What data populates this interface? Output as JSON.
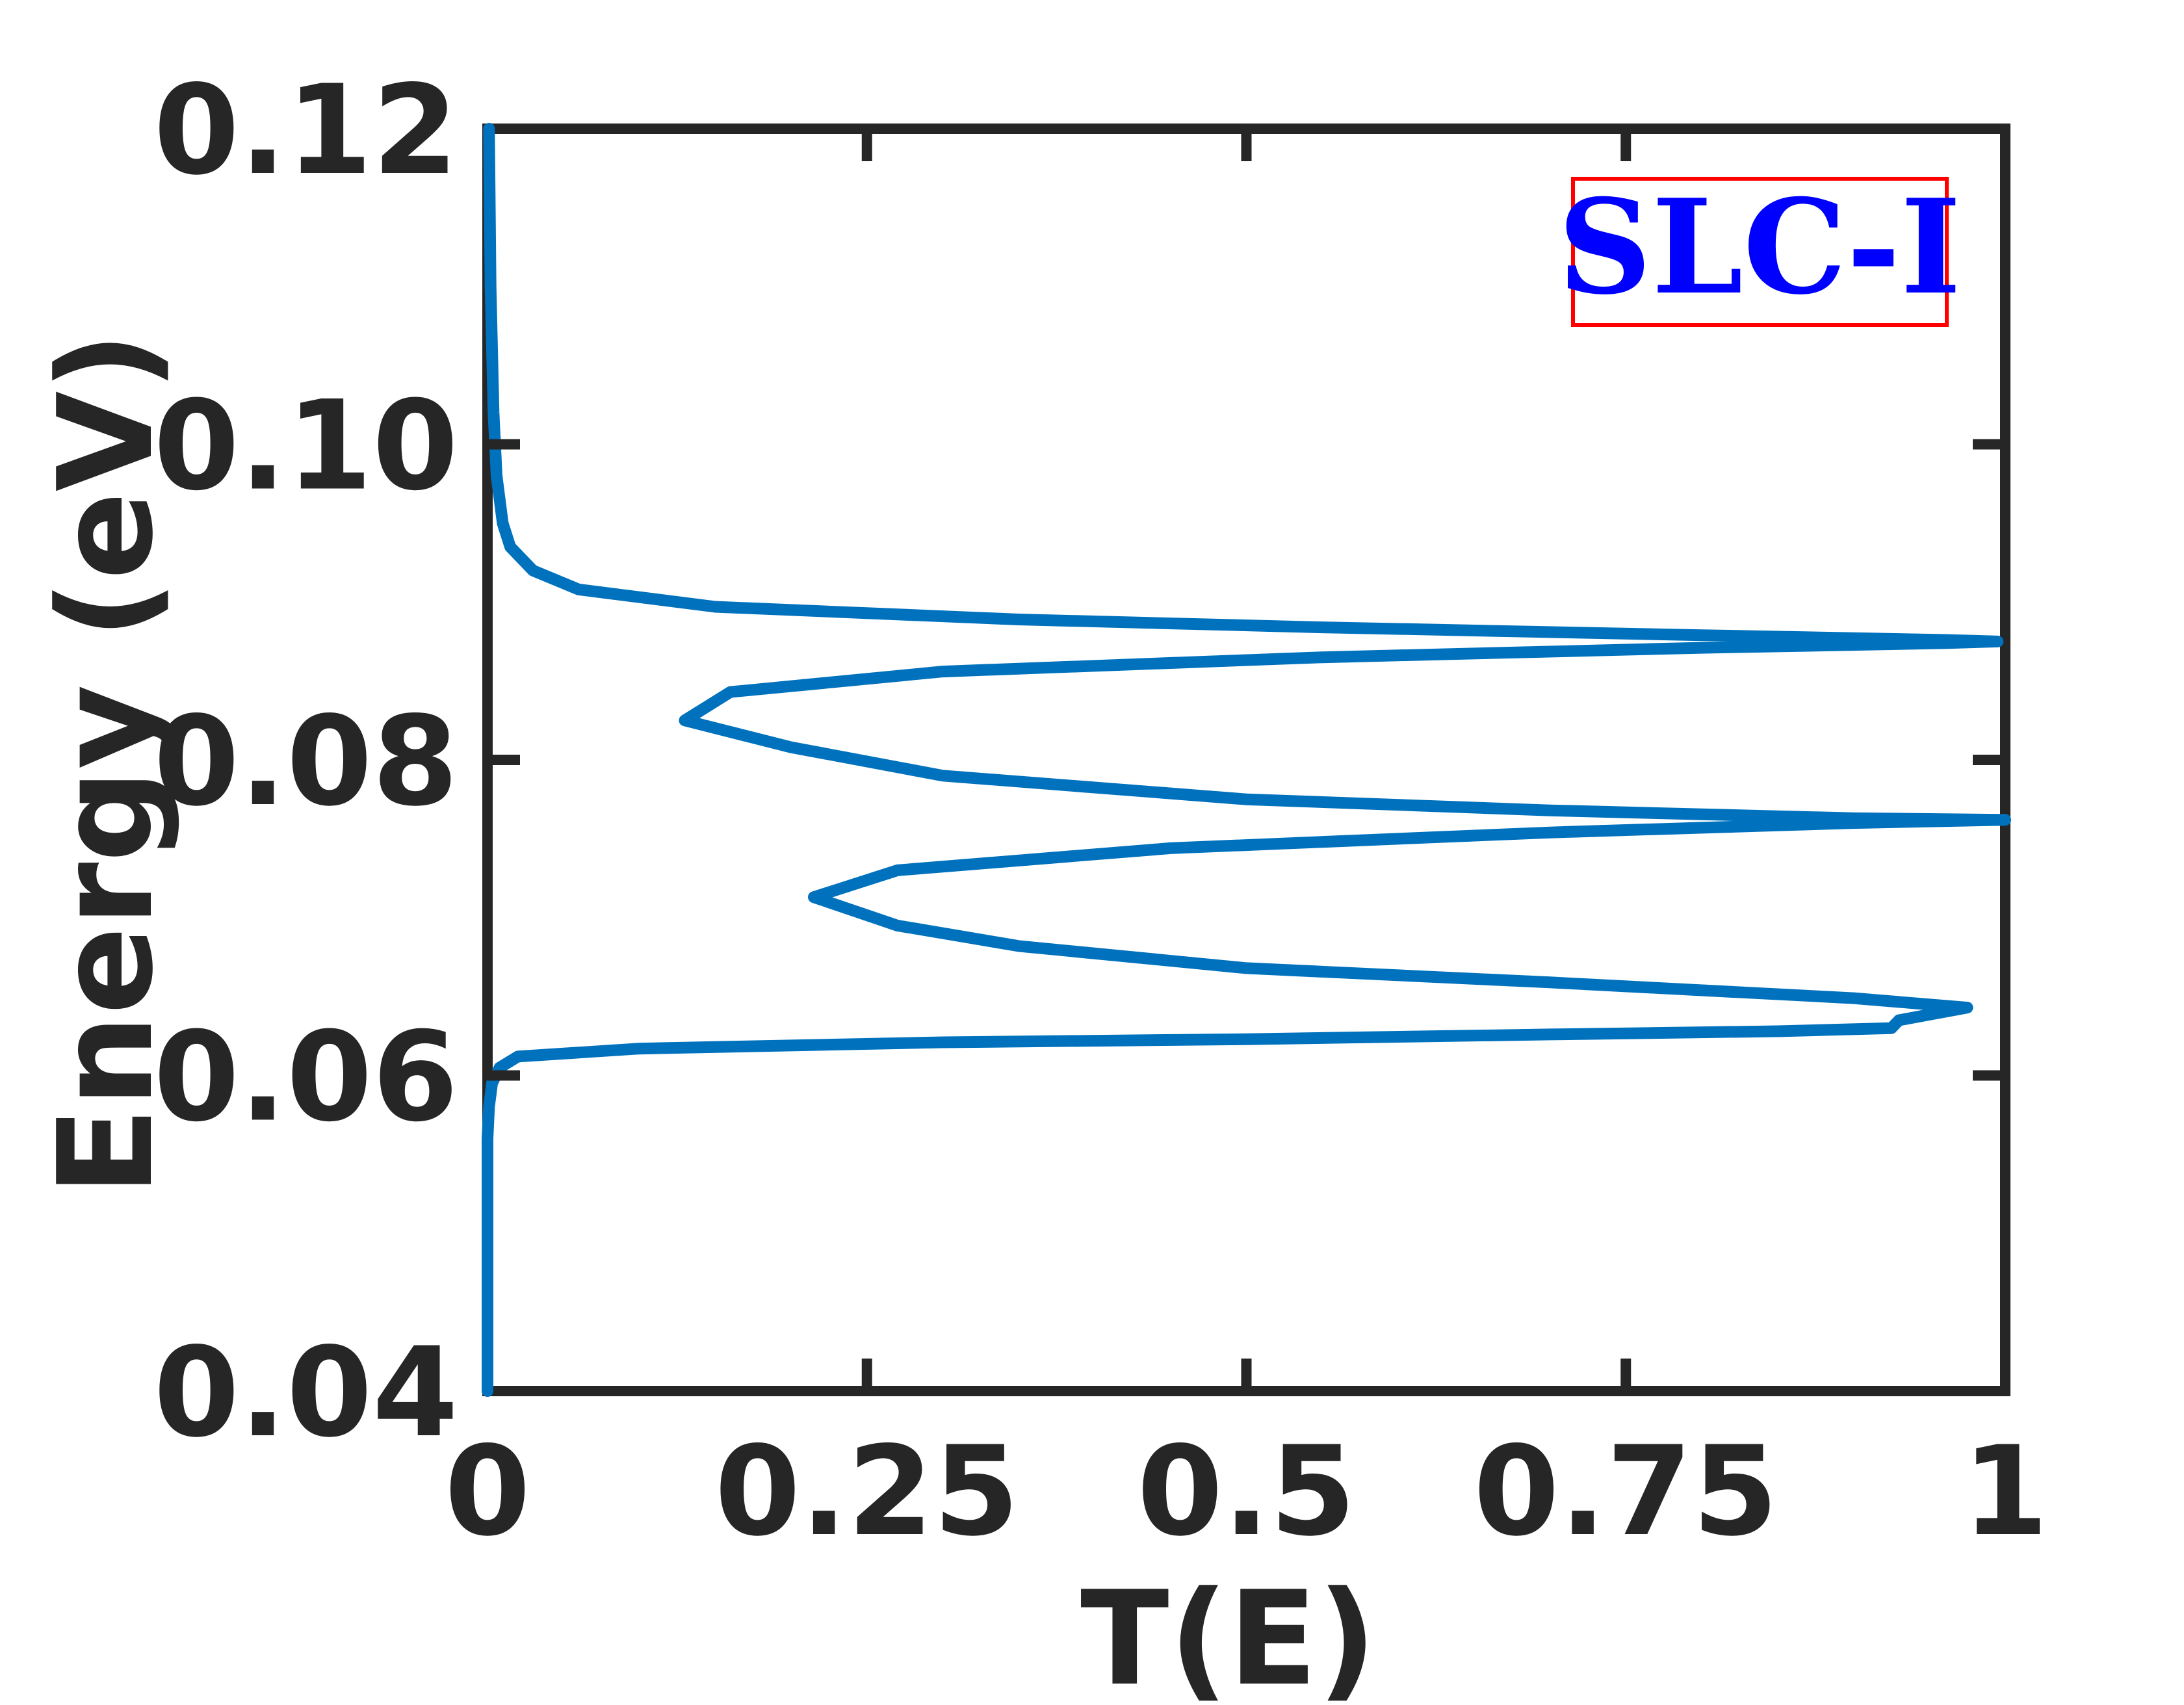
{
  "chart_data": {
    "type": "line",
    "title": "",
    "xlabel": "T(E)",
    "ylabel": "Energy (eV)",
    "xlim": [
      0,
      1
    ],
    "ylim": [
      0.04,
      0.12
    ],
    "xticks": [
      0,
      0.25,
      0.5,
      0.75,
      1
    ],
    "xtick_labels": [
      "0",
      "0.25",
      "0.5",
      "0.75",
      "1"
    ],
    "yticks": [
      0.04,
      0.06,
      0.08,
      0.1,
      0.12
    ],
    "ytick_labels": [
      "0.04",
      "0.06",
      "0.08",
      "0.10",
      "0.12"
    ],
    "grid": false,
    "annotation": {
      "text": "SLC-I",
      "text_color": "#0000ff",
      "box_color": "#ff0000",
      "placement": "top-right"
    },
    "series": [
      {
        "color": "#0072bd",
        "points": [
          [
            0.0,
            0.04
          ],
          [
            0.0,
            0.05
          ],
          [
            0.0,
            0.056
          ],
          [
            0.001,
            0.058
          ],
          [
            0.003,
            0.0595
          ],
          [
            0.008,
            0.0605
          ],
          [
            0.02,
            0.0612
          ],
          [
            0.1,
            0.0617
          ],
          [
            0.3,
            0.0621
          ],
          [
            0.5,
            0.0623
          ],
          [
            0.7,
            0.0626
          ],
          [
            0.85,
            0.0628
          ],
          [
            0.925,
            0.063
          ],
          [
            0.93,
            0.0635
          ],
          [
            0.975,
            0.0643
          ],
          [
            0.9,
            0.0649
          ],
          [
            0.7,
            0.0659
          ],
          [
            0.5,
            0.0668
          ],
          [
            0.35,
            0.0682
          ],
          [
            0.27,
            0.0695
          ],
          [
            0.215,
            0.0713
          ],
          [
            0.27,
            0.073
          ],
          [
            0.45,
            0.0744
          ],
          [
            0.7,
            0.0754
          ],
          [
            0.9,
            0.076
          ],
          [
            1.0,
            0.0762
          ],
          [
            0.9,
            0.0763
          ],
          [
            0.7,
            0.0768
          ],
          [
            0.5,
            0.0775
          ],
          [
            0.3,
            0.079
          ],
          [
            0.2,
            0.0808
          ],
          [
            0.13,
            0.0825
          ],
          [
            0.16,
            0.0843
          ],
          [
            0.3,
            0.0856
          ],
          [
            0.55,
            0.0865
          ],
          [
            0.8,
            0.0871
          ],
          [
            0.96,
            0.0874
          ],
          [
            0.995,
            0.0875
          ],
          [
            0.96,
            0.0876
          ],
          [
            0.8,
            0.0879
          ],
          [
            0.55,
            0.0884
          ],
          [
            0.35,
            0.0889
          ],
          [
            0.15,
            0.0897
          ],
          [
            0.06,
            0.0908
          ],
          [
            0.03,
            0.092
          ],
          [
            0.015,
            0.0935
          ],
          [
            0.01,
            0.095
          ],
          [
            0.006,
            0.098
          ],
          [
            0.004,
            0.102
          ],
          [
            0.002,
            0.11
          ],
          [
            0.001,
            0.12
          ]
        ]
      }
    ]
  }
}
